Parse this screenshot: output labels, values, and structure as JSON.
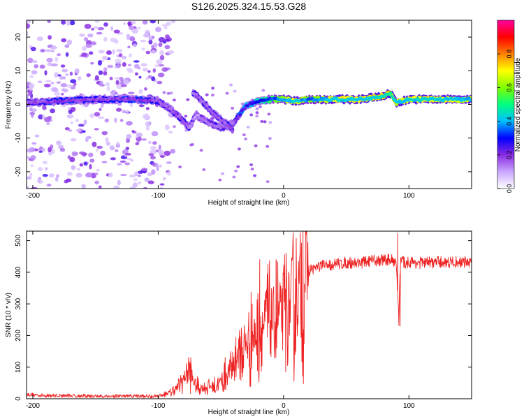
{
  "figure": {
    "title": "S126.2025.324.15.53.G28"
  },
  "chart_data": [
    {
      "type": "heatmap",
      "title": "S126.2025.324.15.53.G28",
      "xlabel": "Height of straight line (km)",
      "ylabel": "Frequency (Hz)",
      "xlim": [
        -205,
        150
      ],
      "ylim": [
        -25,
        25
      ],
      "xticks": [
        -200,
        -100,
        0,
        100
      ],
      "xtick_labels": [
        "-200",
        "-100",
        "0",
        "100"
      ],
      "yticks": [
        -20,
        -10,
        0,
        10,
        20
      ],
      "ytick_labels": [
        "-20",
        "-10",
        "0",
        "10",
        "20"
      ],
      "ridge": {
        "description": "dominant frequency track",
        "x": [
          -205,
          -180,
          -150,
          -120,
          -100,
          -90,
          -80,
          -75,
          -70,
          -60,
          -50,
          -40,
          -35,
          -30,
          -20,
          -10,
          0,
          10,
          20,
          40,
          60,
          80,
          85,
          90,
          100,
          120,
          150
        ],
        "freq": [
          0.5,
          1.0,
          1.5,
          1.5,
          1.0,
          -1.5,
          -5.0,
          -7.0,
          -3.0,
          -5.5,
          -7.0,
          -5.5,
          -3.0,
          -0.5,
          1.0,
          1.5,
          1.5,
          1.0,
          1.5,
          1.5,
          1.5,
          2.5,
          3.5,
          0.5,
          1.5,
          1.5,
          1.5
        ],
        "amplitude": [
          0.3,
          0.4,
          0.35,
          0.4,
          0.35,
          0.3,
          0.35,
          0.3,
          0.25,
          0.3,
          0.3,
          0.3,
          0.45,
          0.5,
          0.55,
          0.65,
          0.75,
          0.85,
          0.7,
          0.85,
          0.85,
          0.9,
          0.95,
          0.8,
          0.85,
          0.85,
          0.8
        ]
      },
      "secondary_branch": {
        "x": [
          -72,
          -65,
          -55,
          -45,
          -40
        ],
        "freq": [
          3.5,
          1.0,
          -3.0,
          -6.0,
          -8.0
        ]
      },
      "noise_region_x": [
        -205,
        -100
      ],
      "colorbar": {
        "label": "Normalized spectral amplitude",
        "range": [
          0.0,
          1.0
        ],
        "ticks": [
          0.0,
          0.2,
          0.4,
          0.6,
          0.8
        ],
        "tick_labels": [
          "0.0",
          "0.2",
          "0.4",
          "0.6",
          "0.8"
        ],
        "colors": [
          "#ffffff",
          "#c9a6ff",
          "#8a2be2",
          "#0000ff",
          "#00bfff",
          "#00ff80",
          "#80ff00",
          "#ffff00",
          "#ff8000",
          "#ff0000",
          "#ff00a0"
        ]
      }
    },
    {
      "type": "line",
      "xlabel": "Height of straight line (km)",
      "ylabel": "SNR (10 * v/v)",
      "xlim": [
        -205,
        150
      ],
      "ylim": [
        0,
        530
      ],
      "xticks": [
        -200,
        -100,
        0,
        100
      ],
      "xtick_labels": [
        "-200",
        "-100",
        "0",
        "100"
      ],
      "yticks": [
        0,
        100,
        200,
        300,
        400,
        500
      ],
      "ytick_labels": [
        "0",
        "100",
        "200",
        "300",
        "400",
        "500"
      ],
      "series": [
        {
          "name": "SNR",
          "color": "#ee2222",
          "x": [
            -205,
            -190,
            -170,
            -150,
            -130,
            -110,
            -100,
            -90,
            -85,
            -80,
            -76,
            -74,
            -70,
            -65,
            -60,
            -55,
            -50,
            -45,
            -40,
            -35,
            -30,
            -25,
            -20,
            -15,
            -10,
            -5,
            0,
            5,
            10,
            15,
            20,
            25,
            30,
            40,
            50,
            60,
            70,
            80,
            85,
            90,
            92,
            93,
            94,
            96,
            100,
            110,
            120,
            130,
            140,
            150
          ],
          "values": [
            14,
            10,
            10,
            8,
            8,
            8,
            9,
            20,
            35,
            60,
            90,
            75,
            40,
            35,
            38,
            40,
            55,
            80,
            110,
            145,
            170,
            190,
            215,
            235,
            250,
            260,
            270,
            290,
            330,
            380,
            405,
            415,
            420,
            425,
            430,
            430,
            435,
            440,
            440,
            435,
            240,
            420,
            440,
            430,
            432,
            430,
            432,
            432,
            432,
            432
          ],
          "spikes": [
            {
              "x": -74,
              "y": 130
            },
            {
              "x": -38,
              "y": 195
            },
            {
              "x": -25,
              "y": 300
            },
            {
              "x": -19,
              "y": 440
            },
            {
              "x": -13,
              "y": 395
            },
            {
              "x": -6,
              "y": 440
            },
            {
              "x": 91,
              "y": 523
            },
            {
              "x": 93,
              "y": 230
            }
          ]
        }
      ]
    }
  ]
}
